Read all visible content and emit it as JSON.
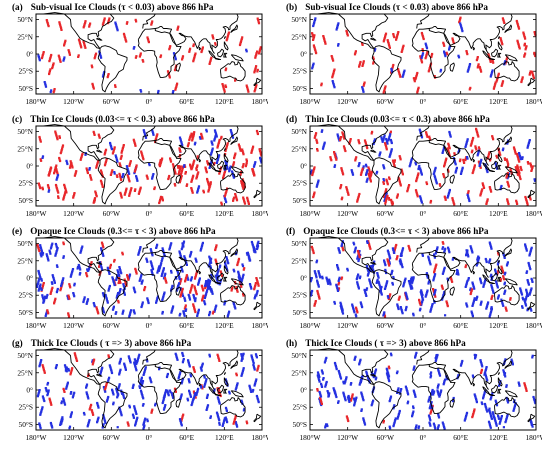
{
  "colors": {
    "red": "#e8272b",
    "blue": "#2430e0",
    "coast": "#000000",
    "frame": "#000000"
  },
  "lat_ticks": [
    "50°N",
    "25°N",
    "0°",
    "25°S",
    "50°S"
  ],
  "lon_ticks": [
    "180°W",
    "120°W",
    "60°W",
    "0°",
    "60°E",
    "120°E",
    "180°W"
  ],
  "panels": [
    {
      "tag": "(a)",
      "title": "Sub-visual Ice Clouds (τ < 0.03) above 866 hPa",
      "density": 70,
      "blue_ratio": 0.18
    },
    {
      "tag": "(b)",
      "title": "Sub-visual Ice Clouds (τ < 0.03) above 866 hPa",
      "density": 80,
      "blue_ratio": 0.22
    },
    {
      "tag": "(c)",
      "title": "Thin Ice Clouds (0.03<= τ < 0.3) above 866 hPa",
      "density": 160,
      "blue_ratio": 0.25
    },
    {
      "tag": "(d)",
      "title": "Thin Ice Clouds (0.03<= τ < 0.3) above 866 hPa",
      "density": 150,
      "blue_ratio": 0.35
    },
    {
      "tag": "(e)",
      "title": "Opaque Ice Clouds (0.3<= τ < 3) above 866 hPa",
      "density": 200,
      "blue_ratio": 0.7
    },
    {
      "tag": "(f)",
      "title": "Opaque Ice Clouds (0.3<= τ < 3) above 866 hPa",
      "density": 180,
      "blue_ratio": 0.8
    },
    {
      "tag": "(g)",
      "title": "Thick Ice Clouds ( τ => 3) above 866 hPa",
      "density": 150,
      "blue_ratio": 0.85
    },
    {
      "tag": "(h)",
      "title": "Thick Ice Clouds ( τ => 3) above 866 hPa",
      "density": 130,
      "blue_ratio": 0.9
    }
  ]
}
